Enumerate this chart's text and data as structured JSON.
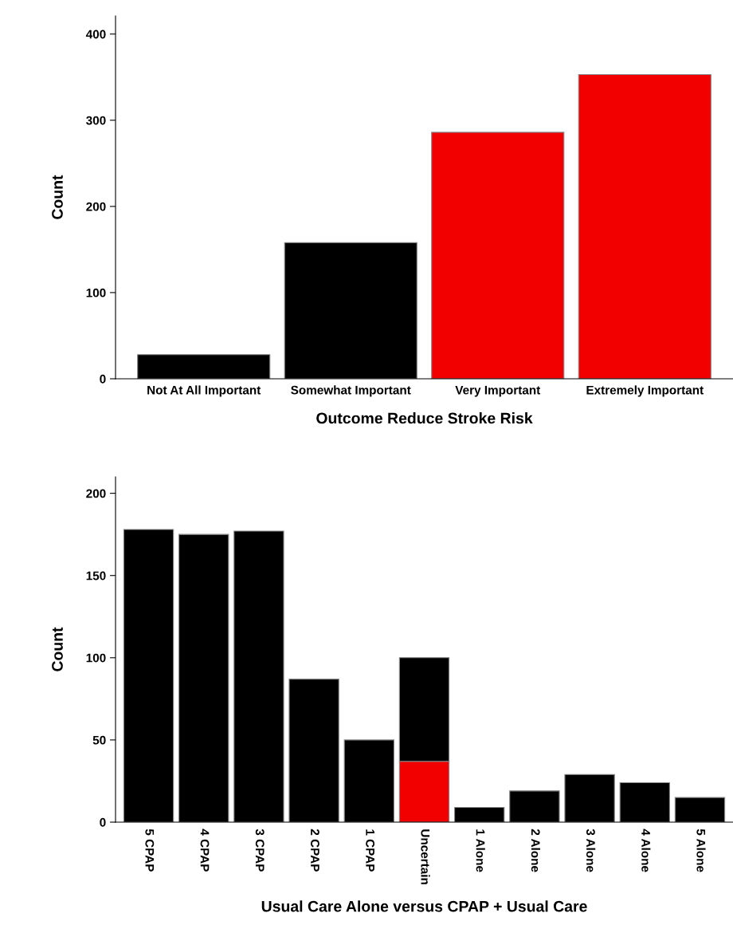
{
  "chart_data": [
    {
      "type": "bar",
      "xlabel": "Outcome Reduce Stroke Risk",
      "ylabel": "Count",
      "categories": [
        "Not At All Important",
        "Somewhat Important",
        "Very Important",
        "Extremely Important"
      ],
      "values": [
        28,
        158,
        286,
        353
      ],
      "colors": [
        "#000000",
        "#000000",
        "#f20000",
        "#f20000"
      ],
      "ylim": [
        0,
        421
      ],
      "yticks": [
        0,
        100,
        200,
        300,
        400
      ],
      "grid": false,
      "legend": false
    },
    {
      "type": "bar",
      "xlabel": "Usual Care Alone versus CPAP + Usual Care",
      "ylabel": "Count",
      "stacked": true,
      "categories": [
        "5 CPAP",
        "4 CPAP",
        "3 CPAP",
        "2 CPAP",
        "1 CPAP",
        "Uncertain",
        "1 Alone",
        "2 Alone",
        "3 Alone",
        "4 Alone",
        "5 Alone"
      ],
      "series": [
        {
          "color": "#f20000",
          "values": [
            null,
            null,
            null,
            null,
            null,
            37,
            null,
            null,
            null,
            null,
            null
          ]
        },
        {
          "color": "#000000",
          "values": [
            178,
            175,
            177,
            87,
            50,
            63,
            9,
            19,
            29,
            24,
            15
          ]
        }
      ],
      "ylim": [
        0,
        210
      ],
      "yticks": [
        0,
        50,
        100,
        150,
        200
      ],
      "grid": false,
      "legend": false
    }
  ]
}
